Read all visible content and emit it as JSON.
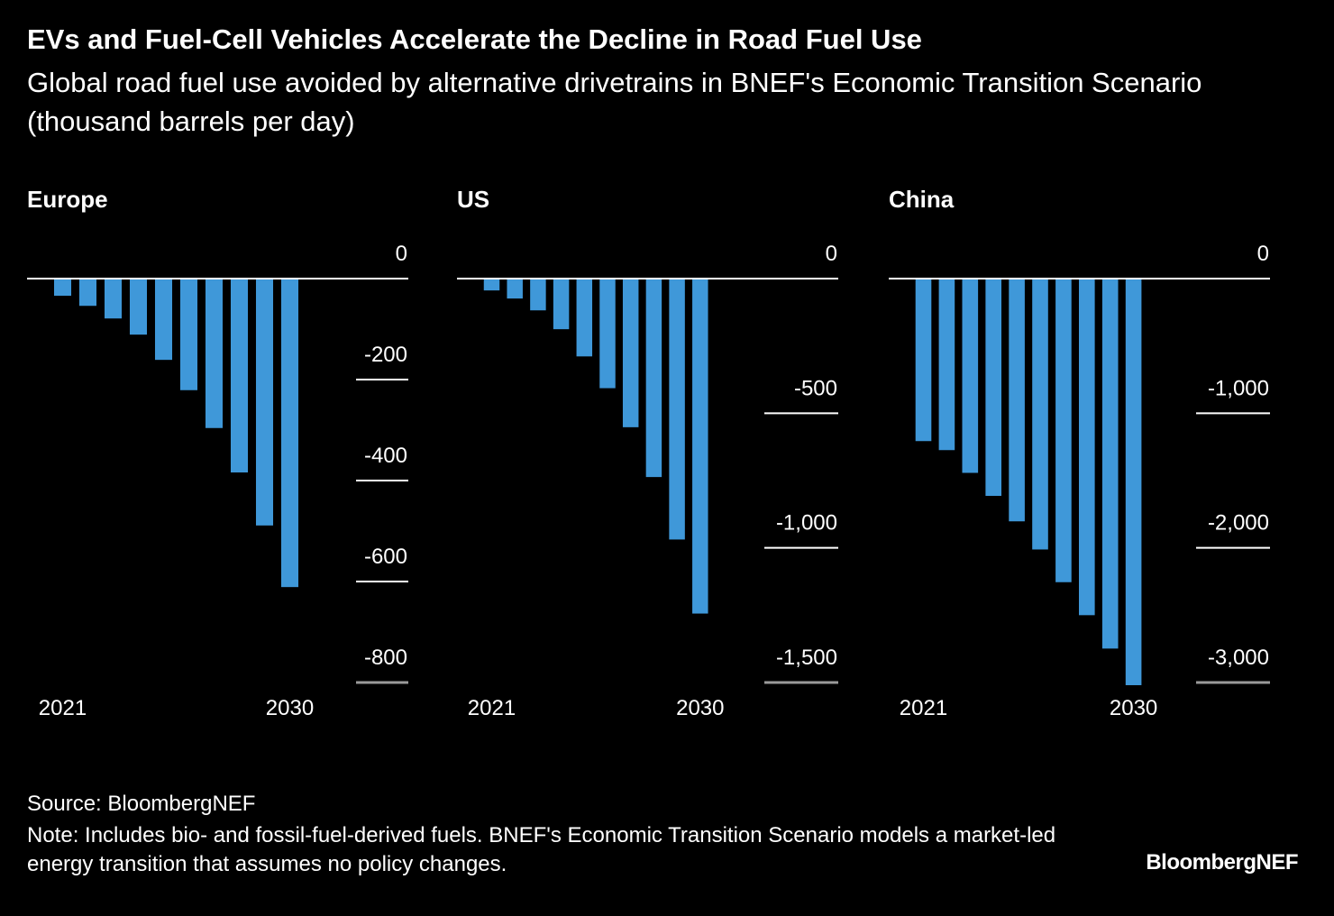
{
  "title": "EVs and Fuel-Cell Vehicles Accelerate the Decline in Road Fuel Use",
  "subtitle": "Global road fuel use avoided by alternative drivetrains in BNEF's Economic Transition Scenario (thousand barrels per day)",
  "source": "Source: BloombergNEF",
  "note": "Note: Includes bio- and fossil-fuel-derived fuels. BNEF's Economic Transition Scenario models a market-led energy transition that assumes no policy changes.",
  "brand": "BloombergNEF",
  "chart_data": [
    {
      "type": "bar",
      "title": "Europe",
      "color": "#3f98d9",
      "categories": [
        "2021",
        null,
        null,
        null,
        null,
        null,
        null,
        null,
        null,
        "2030"
      ],
      "values": [
        -34,
        -54,
        -79,
        -111,
        -161,
        -221,
        -296,
        -384,
        -489,
        -611
      ],
      "ylim": [
        -800,
        0
      ],
      "yticks": [
        0,
        -200,
        -400,
        -600,
        -800
      ]
    },
    {
      "type": "bar",
      "title": "US",
      "color": "#3f98d9",
      "categories": [
        "2021",
        null,
        null,
        null,
        null,
        null,
        null,
        null,
        null,
        "2030"
      ],
      "values": [
        -44,
        -74,
        -118,
        -188,
        -289,
        -407,
        -552,
        -737,
        -969,
        -1244
      ],
      "ylim": [
        -1500,
        0
      ],
      "yticks": [
        0,
        -500,
        {
          "value": -1000,
          "label": "-1,000"
        },
        {
          "value": -1500,
          "label": "-1,500"
        }
      ]
    },
    {
      "type": "bar",
      "title": "China",
      "color": "#3f98d9",
      "categories": [
        "2021",
        null,
        null,
        null,
        null,
        null,
        null,
        null,
        null,
        "2030"
      ],
      "values": [
        -1207,
        -1274,
        -1443,
        -1614,
        -1803,
        -2012,
        -2255,
        -2500,
        -2748,
        -3020
      ],
      "ylim": [
        -3000,
        0
      ],
      "yticks": [
        0,
        {
          "value": -1000,
          "label": "-1,000"
        },
        {
          "value": -2000,
          "label": "-2,000"
        },
        {
          "value": -3000,
          "label": "-3,000"
        }
      ]
    }
  ]
}
